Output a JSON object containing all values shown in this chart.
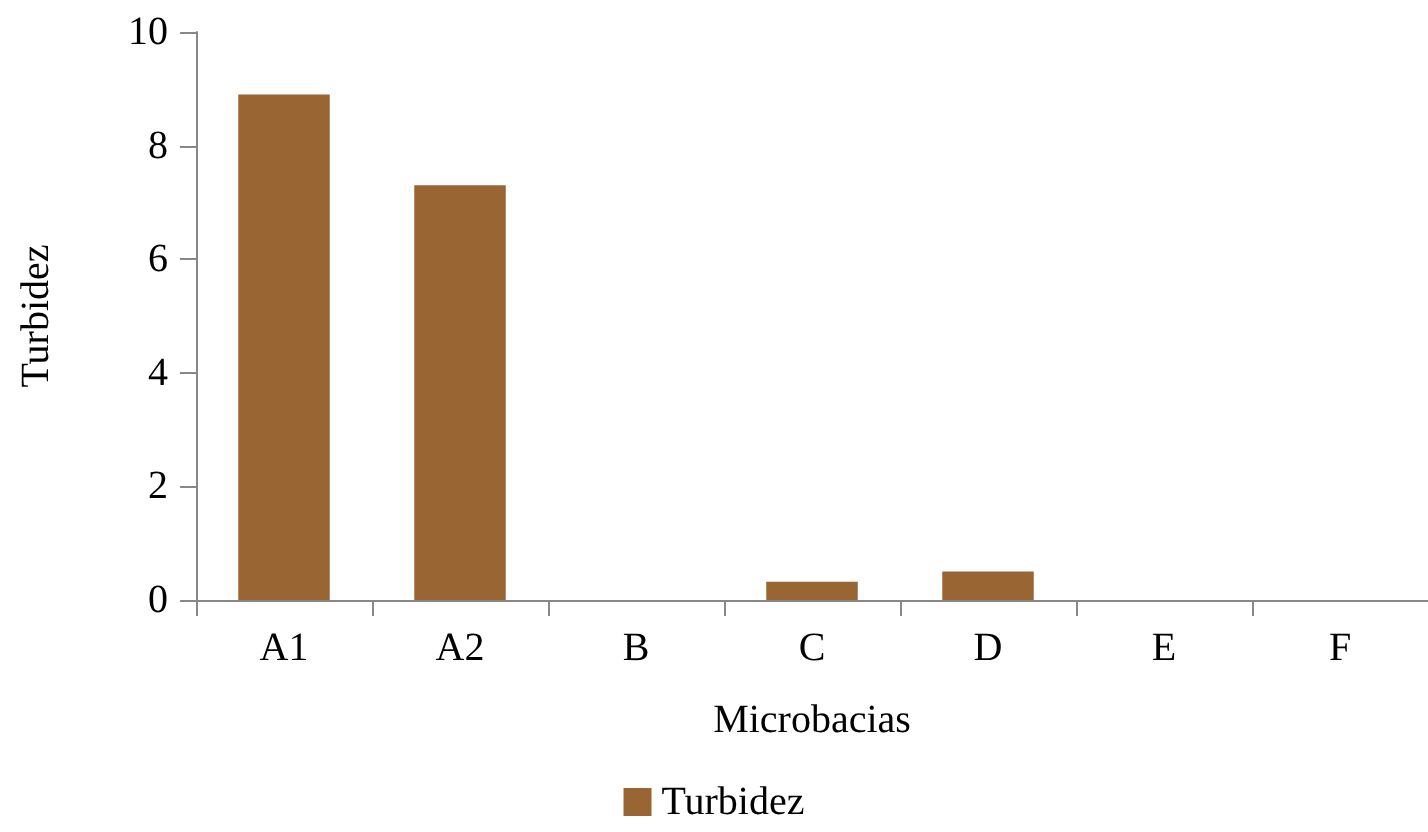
{
  "chart_data": {
    "type": "bar",
    "xlabel": "Microbacias",
    "ylabel": "Turbidez",
    "categories": [
      "A1",
      "A2",
      "B",
      "C",
      "D",
      "E",
      "F"
    ],
    "series": [
      {
        "name": "Turbidez",
        "color": "#996633",
        "values": [
          8.9,
          7.3,
          0,
          0.32,
          0.5,
          0,
          0
        ]
      }
    ],
    "ylim": [
      0,
      10
    ],
    "yticks": [
      0,
      2,
      4,
      6,
      8,
      10
    ],
    "grid": false,
    "legend": "bottom"
  }
}
